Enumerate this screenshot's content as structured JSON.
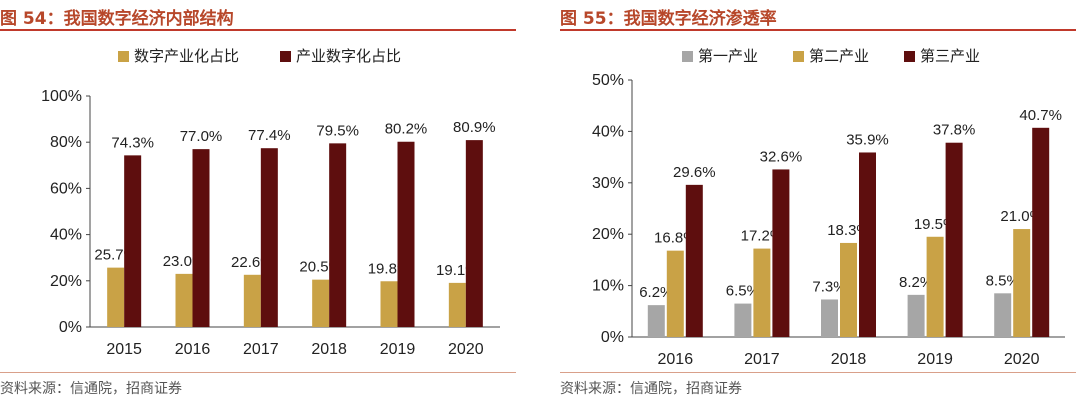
{
  "colors": {
    "title": "#b7472a",
    "digital_industrialization": "#c9a246",
    "industrial_digitalization": "#5e0e0e",
    "primary": "#a6a6a6",
    "secondary": "#c9a246",
    "tertiary": "#5e0e0e"
  },
  "left": {
    "figure_title": "图 54：我国数字经济内部结构",
    "source": "资料来源：信通院，招商证券"
  },
  "right": {
    "figure_title": "图 55：我国数字经济渗透率",
    "source": "资料来源：信通院，招商证券"
  },
  "chart_data": [
    {
      "type": "bar",
      "title": "我国数字经济内部结构",
      "categories": [
        "2015",
        "2016",
        "2017",
        "2018",
        "2019",
        "2020"
      ],
      "series": [
        {
          "name": "数字产业化占比",
          "values": [
            25.7,
            23.0,
            22.6,
            20.5,
            19.8,
            19.1
          ],
          "labels": [
            "25.7%",
            "23.0%",
            "22.6%",
            "20.5%",
            "19.8%",
            "19.1%"
          ]
        },
        {
          "name": "产业数字化占比",
          "values": [
            74.3,
            77.0,
            77.4,
            79.5,
            80.2,
            80.9
          ],
          "labels": [
            "74.3%",
            "77.0%",
            "77.4%",
            "79.5%",
            "80.2%",
            "80.9%"
          ]
        }
      ],
      "ylim": [
        0,
        100
      ],
      "yticks": [
        "0%",
        "20%",
        "40%",
        "60%",
        "80%",
        "100%"
      ],
      "ytick_values": [
        0,
        20,
        40,
        60,
        80,
        100
      ],
      "xlabel": "",
      "ylabel": "",
      "legend": "top",
      "grid": false
    },
    {
      "type": "bar",
      "title": "我国数字经济渗透率",
      "categories": [
        "2016",
        "2017",
        "2018",
        "2019",
        "2020"
      ],
      "series": [
        {
          "name": "第一产业",
          "values": [
            6.2,
            6.5,
            7.3,
            8.2,
            8.5
          ],
          "labels": [
            "6.2%",
            "6.5%",
            "7.3%",
            "8.2%",
            "8.5%"
          ]
        },
        {
          "name": "第二产业",
          "values": [
            16.8,
            17.2,
            18.3,
            19.5,
            21.0
          ],
          "labels": [
            "16.8%",
            "17.2%",
            "18.3%",
            "19.5%",
            "21.0%"
          ]
        },
        {
          "name": "第三产业",
          "values": [
            29.6,
            32.6,
            35.9,
            37.8,
            40.7
          ],
          "labels": [
            "29.6%",
            "32.6%",
            "35.9%",
            "37.8%",
            "40.7%"
          ]
        }
      ],
      "ylim": [
        0,
        50
      ],
      "yticks": [
        "0%",
        "10%",
        "20%",
        "30%",
        "40%",
        "50%"
      ],
      "ytick_values": [
        0,
        10,
        20,
        30,
        40,
        50
      ],
      "xlabel": "",
      "ylabel": "",
      "legend": "top",
      "grid": false
    }
  ]
}
